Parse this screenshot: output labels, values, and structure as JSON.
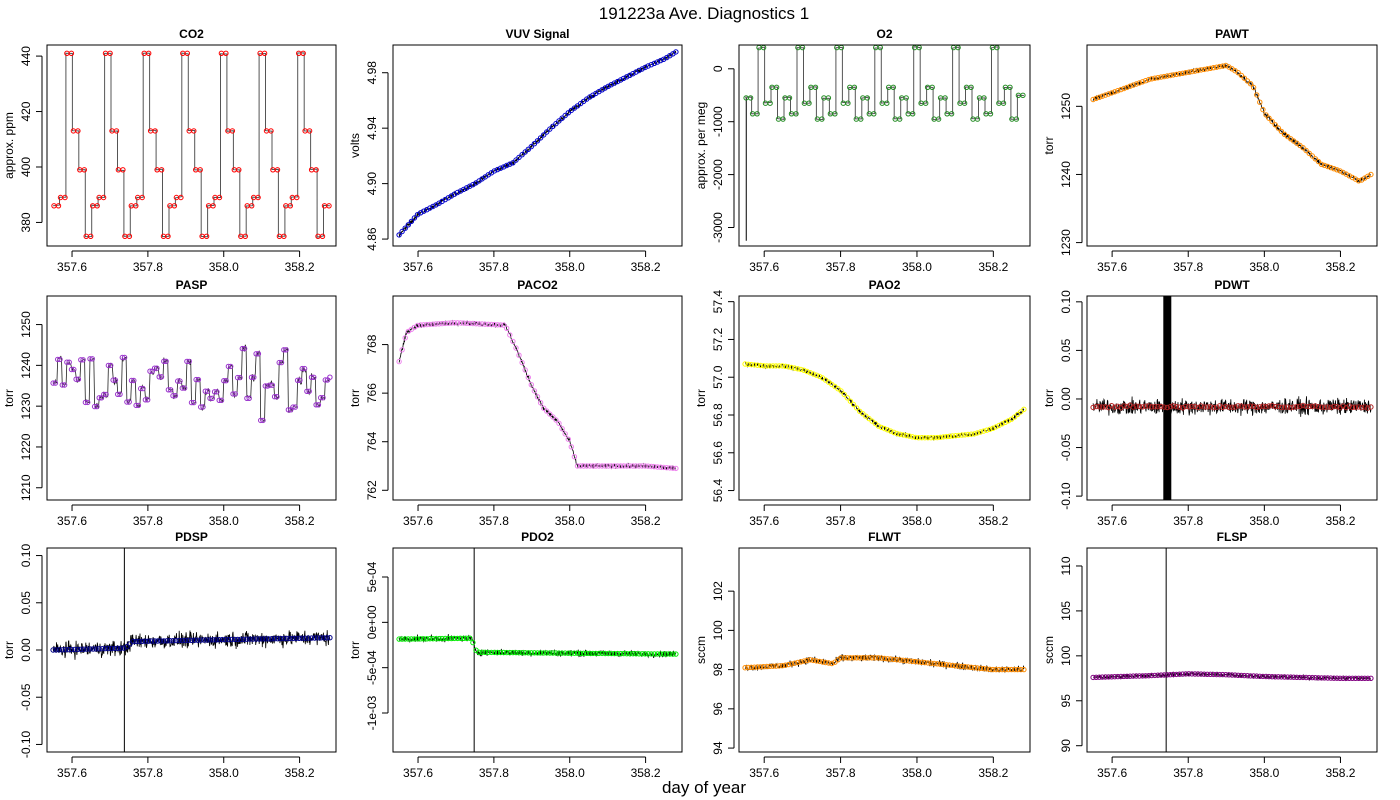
{
  "figure": {
    "title": "191223a   Ave. Diagnostics 1",
    "xlabel": "day of year"
  },
  "chart_data": [
    {
      "type": "line",
      "title": "CO2",
      "ylabel": "approx. ppm",
      "xlim": [
        357.534,
        358.296
      ],
      "ylim": [
        371.5,
        444
      ],
      "yticks": [
        380,
        400,
        420,
        440
      ],
      "xticks": [
        357.6,
        357.8,
        358.0,
        358.2
      ],
      "xticklabels": [
        "357.6",
        "357.8",
        "358.0",
        "358.2"
      ],
      "pattern": "step",
      "levels": [
        375,
        386,
        389,
        399,
        413,
        441
      ],
      "level_sequence": [
        386,
        389,
        441,
        413,
        399,
        375,
        386,
        389,
        441,
        413,
        399,
        375,
        386,
        389,
        441,
        413,
        399,
        375,
        386,
        389,
        441,
        413,
        399,
        375,
        386,
        389,
        441,
        413,
        399,
        375,
        386,
        389,
        441,
        413,
        399,
        375,
        386,
        389,
        441,
        413,
        399,
        375,
        386
      ],
      "raw_color": "#000000",
      "avg_color": "#ff0000"
    },
    {
      "type": "line",
      "title": "VUV Signal",
      "ylabel": "volts",
      "xlim": [
        357.534,
        358.296
      ],
      "ylim": [
        4.855,
        5.0
      ],
      "yticks": [
        4.86,
        4.9,
        4.94,
        4.98
      ],
      "yticklabels": [
        "4.86",
        "4.90",
        "4.94",
        "4.98"
      ],
      "xticks": [
        357.6,
        357.8,
        358.0,
        358.2
      ],
      "xticklabels": [
        "357.6",
        "357.8",
        "358.0",
        "358.2"
      ],
      "x": [
        357.55,
        357.6,
        357.65,
        357.7,
        357.75,
        357.8,
        357.85,
        357.9,
        357.95,
        358.0,
        358.05,
        358.1,
        358.15,
        358.2,
        358.25,
        358.28
      ],
      "y": [
        4.863,
        4.878,
        4.885,
        4.893,
        4.9,
        4.909,
        4.915,
        4.927,
        4.94,
        4.952,
        4.962,
        4.97,
        4.977,
        4.984,
        4.99,
        4.995
      ],
      "raw_color": "#000000",
      "avg_color": "#0000cd"
    },
    {
      "type": "line",
      "title": "O2",
      "ylabel": "approx. per meg",
      "xlim": [
        357.534,
        358.296
      ],
      "ylim": [
        -3350,
        450
      ],
      "yticks": [
        -3000,
        -2000,
        -1000,
        0
      ],
      "xticks": [
        357.6,
        357.8,
        358.0,
        358.2
      ],
      "xticklabels": [
        "357.6",
        "357.8",
        "358.0",
        "358.2"
      ],
      "pattern": "step",
      "level_sequence": [
        -550,
        -850,
        400,
        -650,
        -350,
        -950,
        -550,
        -850,
        400,
        -650,
        -350,
        -950,
        -550,
        -850,
        400,
        -650,
        -350,
        -950,
        -550,
        -850,
        400,
        -650,
        -350,
        -950,
        -550,
        -850,
        400,
        -650,
        -350,
        -950,
        -550,
        -850,
        400,
        -650,
        -350,
        -950,
        -550,
        -850,
        400,
        -650,
        -350,
        -950,
        -500
      ],
      "spike": {
        "x": 357.553,
        "y": -3250
      },
      "raw_color": "#000000",
      "avg_color": "#228b22"
    },
    {
      "type": "line",
      "title": "PAWT",
      "ylabel": "torr",
      "xlim": [
        357.534,
        358.296
      ],
      "ylim": [
        1229.5,
        1259
      ],
      "yticks": [
        1230,
        1240,
        1250
      ],
      "xticks": [
        357.6,
        357.8,
        358.0,
        358.2
      ],
      "xticklabels": [
        "357.6",
        "357.8",
        "358.0",
        "358.2"
      ],
      "x": [
        357.55,
        357.6,
        357.65,
        357.7,
        357.75,
        357.8,
        357.85,
        357.9,
        357.93,
        357.97,
        358.0,
        358.05,
        358.1,
        358.15,
        358.2,
        358.25,
        358.28
      ],
      "y": [
        1251,
        1252,
        1253,
        1254,
        1254.5,
        1255,
        1255.5,
        1256,
        1255,
        1253,
        1249,
        1246,
        1244,
        1241.5,
        1240.5,
        1239,
        1240
      ],
      "raw_color": "#000000",
      "avg_color": "#ff8c00"
    },
    {
      "type": "line",
      "title": "PASP",
      "ylabel": "torr",
      "xlim": [
        357.534,
        358.296
      ],
      "ylim": [
        1207,
        1257
      ],
      "yticks": [
        1210,
        1220,
        1230,
        1240,
        1250
      ],
      "xticks": [
        357.6,
        357.8,
        358.0,
        358.2
      ],
      "xticklabels": [
        "357.6",
        "357.8",
        "358.0",
        "358.2"
      ],
      "pattern": "noisy-step",
      "base": 1236,
      "spread": 12,
      "raw_color": "#000000",
      "avg_color": "#9932cc"
    },
    {
      "type": "line",
      "title": "PACO2",
      "ylabel": "torr",
      "xlim": [
        357.534,
        358.296
      ],
      "ylim": [
        761.6,
        770
      ],
      "yticks": [
        762,
        764,
        766,
        768
      ],
      "xticks": [
        357.6,
        357.8,
        358.0,
        358.2
      ],
      "xticklabels": [
        "357.6",
        "357.8",
        "358.0",
        "358.2"
      ],
      "x": [
        357.55,
        357.57,
        357.6,
        357.7,
        357.83,
        357.86,
        357.9,
        357.93,
        357.97,
        358.0,
        358.02,
        358.1,
        358.2,
        358.28
      ],
      "y": [
        767.3,
        768.5,
        768.8,
        768.9,
        768.8,
        767.8,
        766.3,
        765.4,
        764.8,
        764.0,
        763.0,
        763.0,
        763.0,
        762.9
      ],
      "raw_color": "#000000",
      "avg_color": "#ee82ee"
    },
    {
      "type": "line",
      "title": "PAO2",
      "ylabel": "torr",
      "xlim": [
        357.534,
        358.296
      ],
      "ylim": [
        56.35,
        57.43
      ],
      "yticks": [
        56.4,
        56.6,
        56.8,
        57.0,
        57.2,
        57.4
      ],
      "yticklabels": [
        "56.4",
        "56.6",
        "56.8",
        "57.0",
        "57.2",
        "57.4"
      ],
      "xticks": [
        357.6,
        357.8,
        358.0,
        358.2
      ],
      "xticklabels": [
        "357.6",
        "357.8",
        "358.0",
        "358.2"
      ],
      "x": [
        357.55,
        357.6,
        357.65,
        357.7,
        357.75,
        357.8,
        357.85,
        357.9,
        357.95,
        358.0,
        358.05,
        358.1,
        358.15,
        358.2,
        358.25,
        358.28
      ],
      "y": [
        57.07,
        57.06,
        57.06,
        57.04,
        57.0,
        56.93,
        56.82,
        56.74,
        56.7,
        56.68,
        56.68,
        56.69,
        56.7,
        56.73,
        56.78,
        56.83
      ],
      "raw_color": "#000000",
      "avg_color": "#ffff00"
    },
    {
      "type": "line",
      "title": "PDWT",
      "ylabel": "torr",
      "xlim": [
        357.534,
        358.296
      ],
      "ylim": [
        -0.104,
        0.106
      ],
      "yticks": [
        -0.1,
        -0.05,
        0.0,
        0.05,
        0.1
      ],
      "yticklabels": [
        "-0.10",
        "-0.05",
        "0.00",
        "0.05",
        "0.10"
      ],
      "xticks": [
        357.6,
        357.8,
        358.0,
        358.2
      ],
      "xticklabels": [
        "357.6",
        "357.8",
        "358.0",
        "358.2"
      ],
      "flat": -0.008,
      "noise": 0.012,
      "burst": {
        "x": 357.745,
        "width": 0.006
      },
      "raw_color": "#000000",
      "avg_color": "#b22222"
    },
    {
      "type": "line",
      "title": "PDSP",
      "ylabel": "torr",
      "xlim": [
        357.534,
        358.296
      ],
      "ylim": [
        -0.108,
        0.108
      ],
      "yticks": [
        -0.1,
        -0.05,
        0.0,
        0.05,
        0.1
      ],
      "yticklabels": [
        "-0.10",
        "-0.05",
        "0.00",
        "0.05",
        "0.10"
      ],
      "xticks": [
        357.6,
        357.8,
        358.0,
        358.2
      ],
      "xticklabels": [
        "357.6",
        "357.8",
        "358.0",
        "358.2"
      ],
      "x": [
        357.55,
        357.74,
        357.76,
        358.0,
        358.28
      ],
      "y": [
        0.0,
        0.002,
        0.009,
        0.011,
        0.013
      ],
      "noise": 0.012,
      "spike": {
        "x": 357.738
      },
      "raw_color": "#000000",
      "avg_color": "#00008b"
    },
    {
      "type": "line",
      "title": "PDO2",
      "ylabel": "torr",
      "xlim": [
        357.534,
        358.296
      ],
      "ylim": [
        -0.00143,
        0.00082
      ],
      "yticks": [
        -0.001,
        -0.0005,
        0.0,
        0.0005
      ],
      "yticklabels": [
        "-1e-03",
        "-5e-04",
        "0e+00",
        "5e-04"
      ],
      "xticks": [
        357.6,
        357.8,
        358.0,
        358.2
      ],
      "xticklabels": [
        "357.6",
        "357.8",
        "358.0",
        "358.2"
      ],
      "x": [
        357.55,
        357.74,
        357.755,
        358.0,
        358.28
      ],
      "y": [
        -0.000185,
        -0.000175,
        -0.00033,
        -0.00034,
        -0.00035
      ],
      "noise": 5e-05,
      "spike": {
        "x": 357.748
      },
      "raw_color": "#000000",
      "avg_color": "#00ee00"
    },
    {
      "type": "line",
      "title": "FLWT",
      "ylabel": "sccm",
      "xlim": [
        357.534,
        358.296
      ],
      "ylim": [
        93.8,
        104.2
      ],
      "yticks": [
        94,
        96,
        98,
        100,
        102
      ],
      "xticks": [
        357.6,
        357.8,
        358.0,
        358.2
      ],
      "xticklabels": [
        "357.6",
        "357.8",
        "358.0",
        "358.2"
      ],
      "x": [
        357.55,
        357.65,
        357.72,
        357.78,
        357.8,
        357.9,
        358.0,
        358.1,
        358.2,
        358.28
      ],
      "y": [
        98.1,
        98.2,
        98.5,
        98.3,
        98.6,
        98.6,
        98.4,
        98.2,
        98.0,
        98.0
      ],
      "noise": 0.25,
      "raw_color": "#000000",
      "avg_color": "#ff8c00"
    },
    {
      "type": "line",
      "title": "FLSP",
      "ylabel": "sccm",
      "xlim": [
        357.534,
        358.296
      ],
      "ylim": [
        89.3,
        112
      ],
      "yticks": [
        90,
        95,
        100,
        105,
        110
      ],
      "xticks": [
        357.6,
        357.8,
        358.0,
        358.2
      ],
      "xticklabels": [
        "357.6",
        "357.8",
        "358.0",
        "358.2"
      ],
      "x": [
        357.55,
        357.7,
        357.8,
        357.9,
        358.0,
        358.1,
        358.2,
        358.28
      ],
      "y": [
        97.6,
        97.8,
        98.0,
        97.9,
        97.7,
        97.6,
        97.5,
        97.5
      ],
      "noise": 0.3,
      "spike": {
        "x": 357.742
      },
      "raw_color": "#000000",
      "avg_color": "#800080"
    }
  ]
}
